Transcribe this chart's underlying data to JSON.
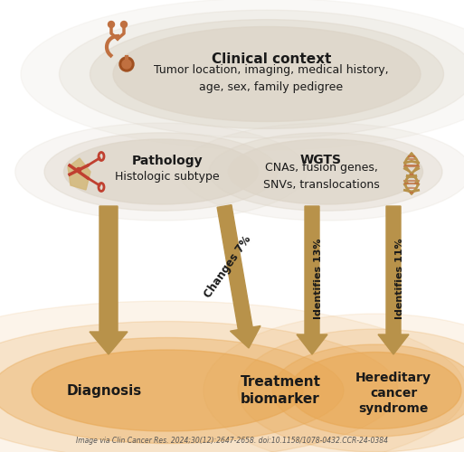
{
  "bg_color": "#ffffff",
  "arrow_color": "#b8924a",
  "arrow_dark": "#9a7535",
  "ellipse_top_color": "#ddd5c8",
  "ellipse_bottom_color": "#f0c882",
  "clinical_title": "Clinical context",
  "clinical_text": "Tumor location, imaging, medical history,\nage, sex, family pedigree",
  "pathology_title": "Pathology",
  "pathology_text": "Histologic subtype",
  "wgts_title": "WGTS",
  "wgts_text": "CNAs, fusion genes,\nSNVs, translocations",
  "arrow1_label": "Changes 7%",
  "arrow2_label": "Identifies 13%",
  "arrow3_label": "Identifies 11%",
  "diagnosis_label": "Diagnosis",
  "treatment_label": "Treatment\nbiomarker",
  "hereditary_label": "Hereditary\ncancer\nsyndrome",
  "citation": "Image via Clin Cancer Res. 2024;30(12):2647-2658. doi:10.1158/1078-0432.CCR-24-0384",
  "fig_width": 5.13,
  "fig_height": 5.0,
  "dpi": 100
}
